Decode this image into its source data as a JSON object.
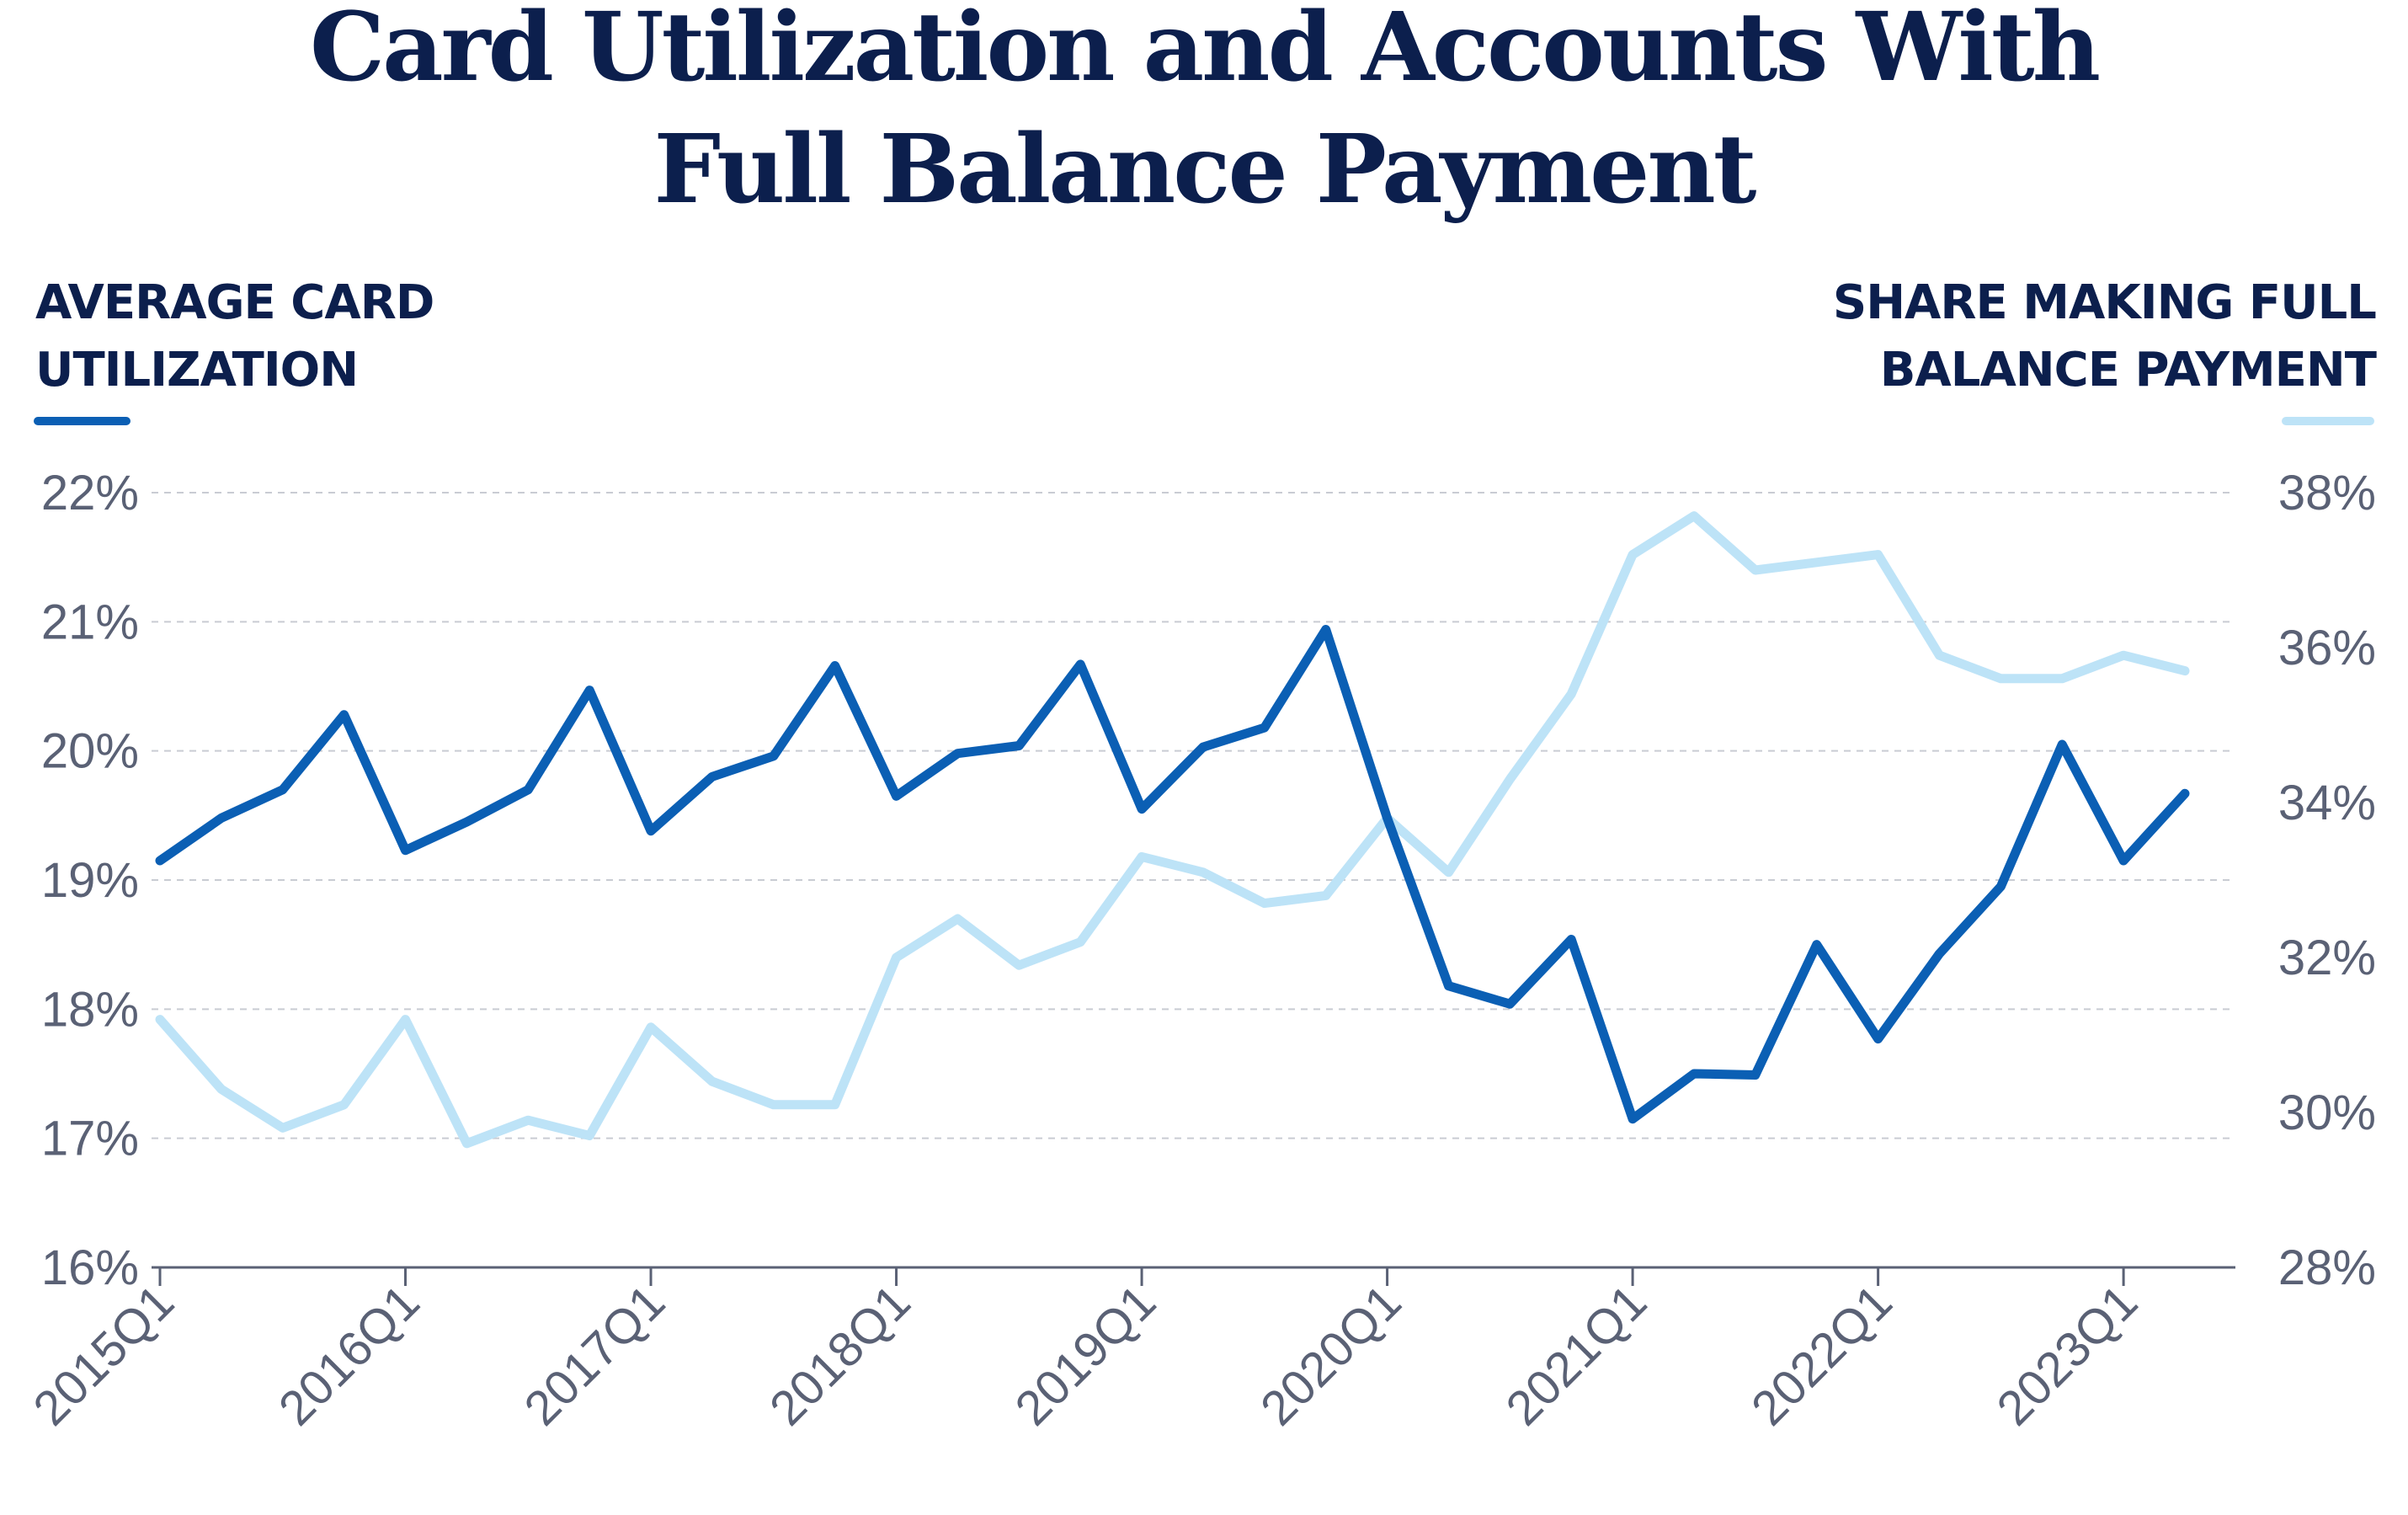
{
  "chart_data": {
    "type": "line",
    "title": [
      "Card Utilization and Accounts With",
      "Full Balance Payment"
    ],
    "left_axis": {
      "label": [
        "AVERAGE CARD",
        "UTILIZATION"
      ],
      "ylim": [
        16,
        22
      ],
      "ticks": [
        "16%",
        "17%",
        "18%",
        "19%",
        "20%",
        "21%",
        "22%"
      ],
      "tick_values": [
        16,
        17,
        18,
        19,
        20,
        21,
        22
      ],
      "color": "#0b5fb4"
    },
    "right_axis": {
      "label": [
        "SHARE MAKING FULL",
        "BALANCE PAYMENT"
      ],
      "ylim": [
        28,
        38
      ],
      "ticks": [
        "28%",
        "30%",
        "32%",
        "34%",
        "36%",
        "38%"
      ],
      "tick_values": [
        28,
        30,
        32,
        34,
        36,
        38
      ],
      "color": "#bde3f7"
    },
    "x": [
      "2015Q1",
      "2015Q2",
      "2015Q3",
      "2015Q4",
      "2016Q1",
      "2016Q2",
      "2016Q3",
      "2016Q4",
      "2017Q1",
      "2017Q2",
      "2017Q3",
      "2017Q4",
      "2018Q1",
      "2018Q2",
      "2018Q3",
      "2018Q4",
      "2019Q1",
      "2019Q2",
      "2019Q3",
      "2019Q4",
      "2020Q1",
      "2020Q2",
      "2020Q3",
      "2020Q4",
      "2021Q1",
      "2021Q2",
      "2021Q3",
      "2021Q4",
      "2022Q1",
      "2022Q2",
      "2022Q3",
      "2022Q4",
      "2023Q1",
      "2023Q2"
    ],
    "x_tick_labels": [
      "2015Q1",
      "2016Q1",
      "2017Q1",
      "2018Q1",
      "2019Q1",
      "2020Q1",
      "2021Q1",
      "2022Q1",
      "2023Q1"
    ],
    "grid": true,
    "series": [
      {
        "axis": "left",
        "color": "#0b5fb4",
        "values": [
          19.15,
          19.48,
          19.7,
          20.28,
          19.23,
          19.45,
          19.7,
          20.47,
          19.38,
          19.8,
          19.96,
          20.66,
          19.65,
          19.98,
          20.04,
          20.67,
          19.55,
          20.03,
          20.18,
          20.94,
          19.48,
          18.18,
          18.04,
          18.54,
          17.15,
          17.5,
          17.49,
          18.5,
          17.77,
          18.43,
          18.95,
          20.05,
          19.15,
          19.67
        ]
      },
      {
        "axis": "right",
        "color": "#bde3f7",
        "values": [
          31.2,
          30.3,
          29.8,
          30.1,
          31.2,
          29.6,
          29.9,
          29.7,
          31.1,
          30.4,
          30.1,
          30.1,
          32.0,
          32.5,
          31.9,
          32.2,
          33.3,
          33.1,
          32.7,
          32.8,
          33.8,
          33.1,
          34.3,
          35.4,
          37.2,
          37.7,
          37.0,
          37.1,
          37.2,
          35.9,
          35.6,
          35.6,
          35.9,
          35.7
        ]
      }
    ]
  }
}
